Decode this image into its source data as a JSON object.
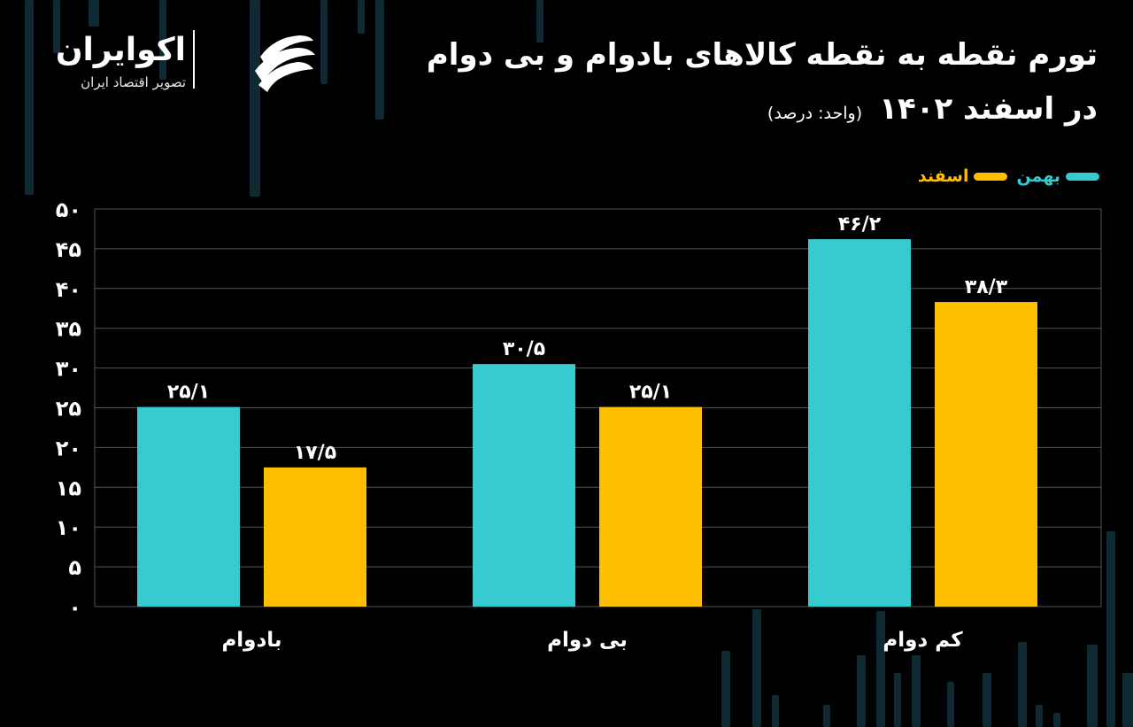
{
  "brand": {
    "name": "اکوایران",
    "tagline": "تصویر اقتصاد ایران"
  },
  "title": {
    "line1": "تورم نقطه به نقطه کالاهای بادوام و بی دوام",
    "line2": "در اسفند ۱۴۰۲",
    "unit": "(واحد: درصد)"
  },
  "colors": {
    "background": "#000000",
    "series1": "#36CBCF",
    "series2": "#FFBF00",
    "grid": "#555555",
    "bgBars": "#0F2A33"
  },
  "chart_data": {
    "type": "bar",
    "categories": [
      "بادوام",
      "بی دوام",
      "کم دوام"
    ],
    "series": [
      {
        "name": "بهمن",
        "values": [
          25.1,
          30.5,
          46.2
        ],
        "labels": [
          "۲۵/۱",
          "۳۰/۵",
          "۴۶/۲"
        ],
        "color": "#36CBCF"
      },
      {
        "name": "اسفند",
        "values": [
          17.5,
          25.1,
          38.3
        ],
        "labels": [
          "۱۷/۵",
          "۲۵/۱",
          "۳۸/۳"
        ],
        "color": "#FFBF00"
      }
    ],
    "yticks": [
      0,
      5,
      10,
      15,
      20,
      25,
      30,
      35,
      40,
      45,
      50
    ],
    "ytick_labels": [
      "۰",
      "۵",
      "۱۰",
      "۱۵",
      "۲۰",
      "۲۵",
      "۳۰",
      "۳۵",
      "۴۰",
      "۴۵",
      "۵۰"
    ],
    "ylim": [
      0,
      50
    ],
    "grid": true,
    "legend_position": "top-right"
  }
}
